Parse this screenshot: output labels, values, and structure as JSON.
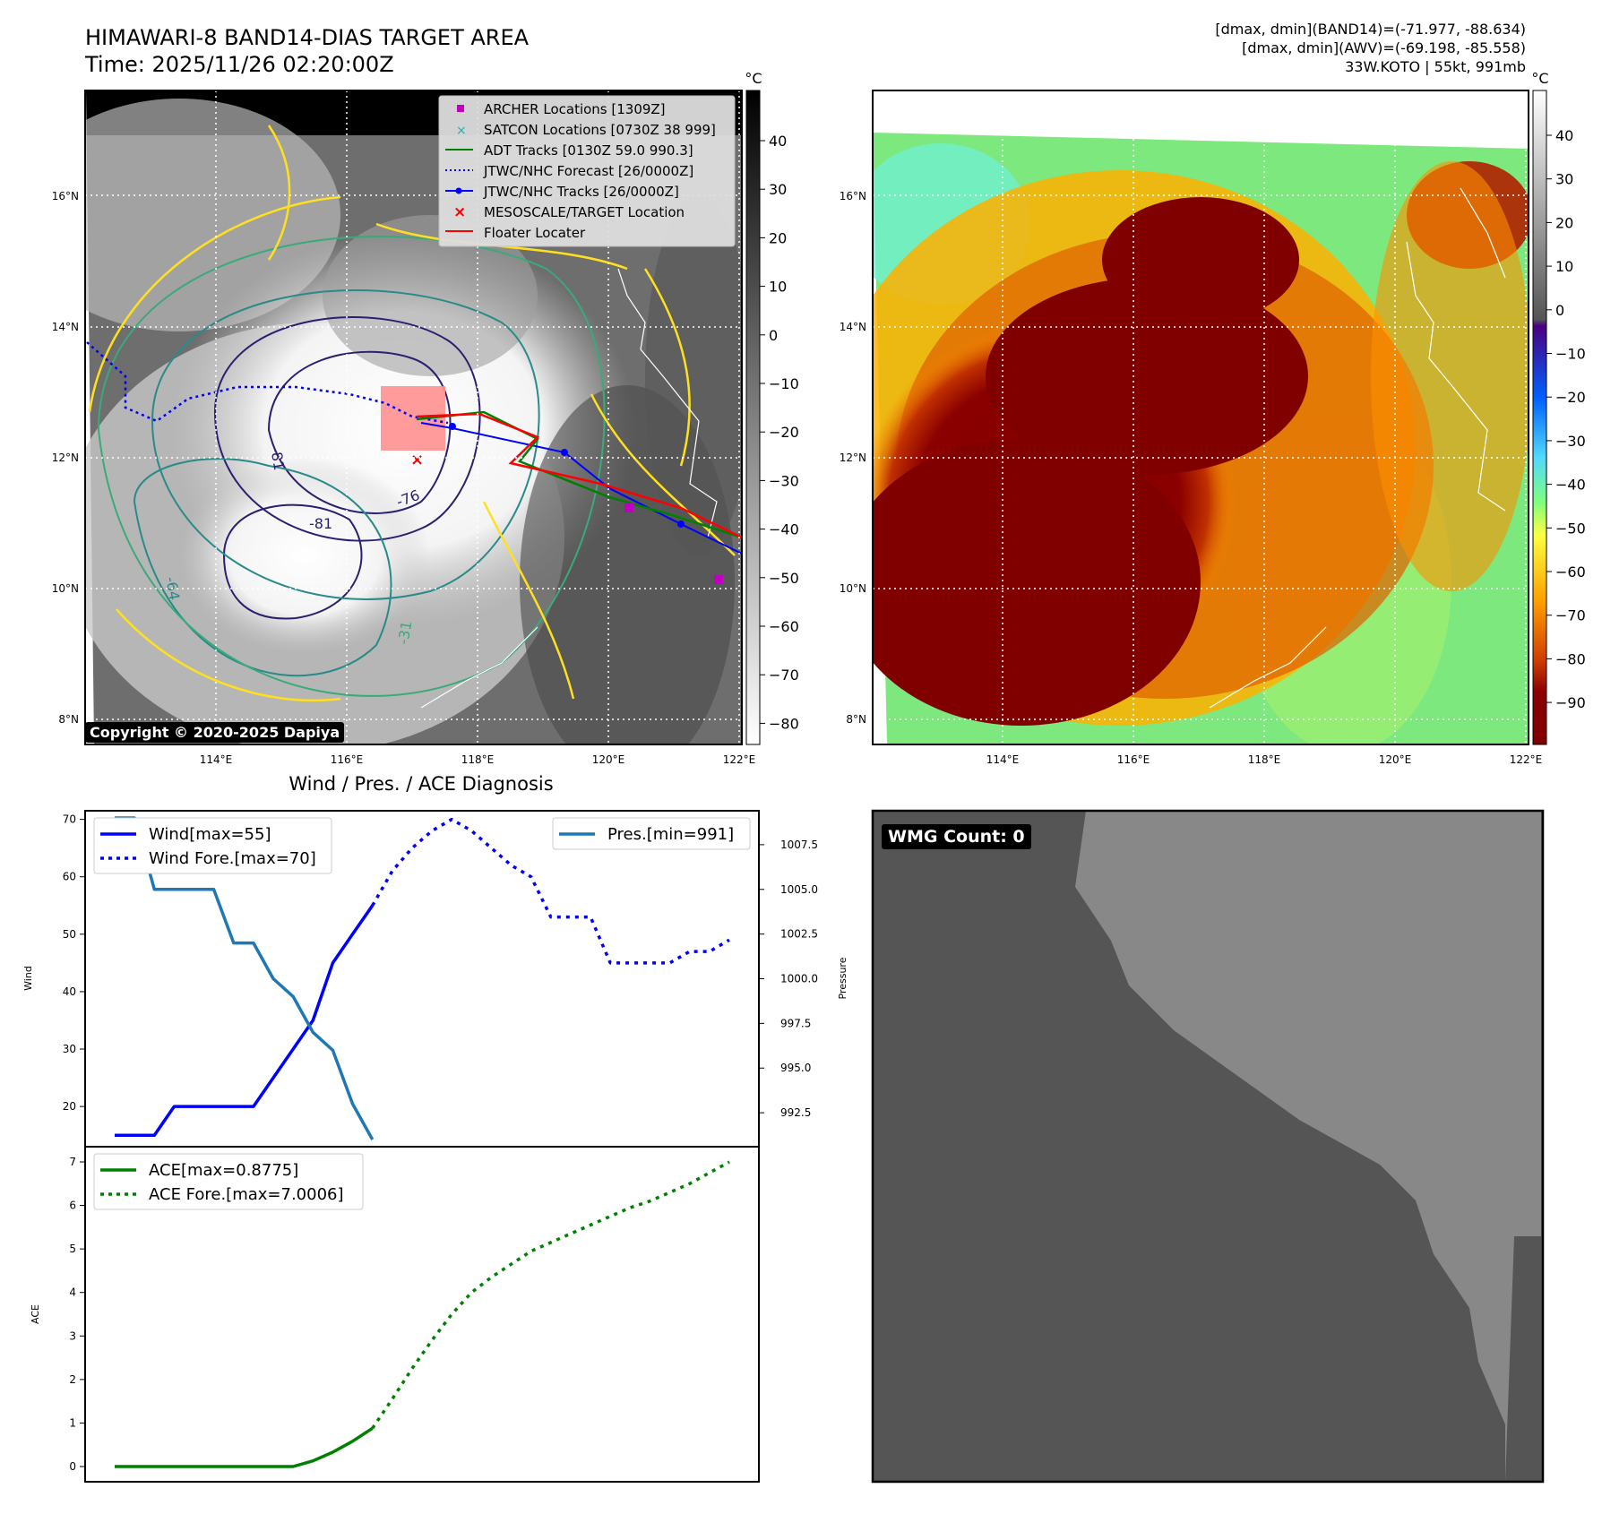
{
  "header": {
    "title": "HIMAWARI-8 BAND14-DIAS TARGET AREA",
    "time": "Time: 2025/11/26 02:20:00Z",
    "info1": "[dmax, dmin](BAND14)=(-71.977, -88.634)",
    "info2": "[dmax, dmin](AWV)=(-69.198, -85.558)",
    "info3": "33W.KOTO | 55kt, 991mb"
  },
  "map": {
    "lat_labels": [
      "16°N",
      "14°N",
      "12°N",
      "10°N",
      "8°N"
    ],
    "lon_labels": [
      "114°E",
      "116°E",
      "118°E",
      "120°E",
      "122°E"
    ],
    "lat_values": [
      16,
      14,
      12,
      10,
      8
    ],
    "lon_values": [
      114,
      116,
      118,
      120,
      122
    ],
    "contour_labels": [
      "-81",
      "-76",
      "-81",
      "-64",
      "-31"
    ],
    "copyright": "Copyright © 2020-2025 Dapiya",
    "cbar_unit": "°C",
    "cbar1_ticks": [
      "40",
      "30",
      "20",
      "10",
      "0",
      "−10",
      "−20",
      "−30",
      "−40",
      "−50",
      "−60",
      "−70",
      "−80"
    ],
    "cbar2_ticks": [
      "40",
      "30",
      "20",
      "10",
      "0",
      "−10",
      "−20",
      "−30",
      "−40",
      "−50",
      "−60",
      "−70",
      "−80",
      "−90"
    ],
    "legend": [
      {
        "label": "ARCHER Locations [1309Z]",
        "color": "#c000c0",
        "marker": "square"
      },
      {
        "label": "SATCON Locations [0730Z 38 999]",
        "color": "#20b0b0",
        "marker": "x"
      },
      {
        "label": "ADT Tracks [0130Z 59.0 990.3]",
        "color": "#008000",
        "marker": "line"
      },
      {
        "label": "JTWC/NHC Forecast [26/0000Z]",
        "color": "#0000ff",
        "marker": "dotted"
      },
      {
        "label": "JTWC/NHC Tracks [26/0000Z]",
        "color": "#0000ff",
        "marker": "dotline"
      },
      {
        "label": "MESOSCALE/TARGET Location",
        "color": "#ff0000",
        "marker": "x"
      },
      {
        "label": "Floater Locater",
        "color": "#ff0000",
        "marker": "line"
      }
    ]
  },
  "diag": {
    "title": "Wind / Pres. / ACE Diagnosis",
    "wmg": "WMG Count: 0"
  },
  "chart_data": [
    {
      "type": "line",
      "title": "Wind / Pres. / ACE Diagnosis",
      "ylabel": "Wind",
      "ylabel2": "Pressure",
      "ylim": [
        13,
        71.5
      ],
      "y2lim": [
        990.6,
        1009.4
      ],
      "yticks": [
        "70",
        "60",
        "50",
        "40",
        "30",
        "20"
      ],
      "y2ticks": [
        "1007.5",
        "1005.0",
        "1002.5",
        "1000.0",
        "997.5",
        "995.0",
        "992.5"
      ],
      "series": [
        {
          "name": "Wind[max=55]",
          "color": "#0000ff",
          "style": "solid",
          "x": [
            0,
            1,
            2,
            3,
            4,
            5,
            6,
            7,
            8,
            9,
            10,
            11,
            12,
            13
          ],
          "y": [
            15,
            15,
            15,
            20,
            20,
            20,
            20,
            20,
            25,
            30,
            35,
            45,
            50,
            55
          ]
        },
        {
          "name": "Wind Fore.[max=70]",
          "color": "#0000ff",
          "style": "dotted",
          "x": [
            13,
            14,
            15,
            16,
            17,
            18,
            19,
            20,
            21,
            22,
            23,
            24,
            25,
            26,
            27,
            28,
            29,
            30,
            31
          ],
          "y": [
            55,
            61,
            65,
            68,
            70,
            68,
            65,
            62,
            60,
            53,
            53,
            53,
            45,
            45,
            45,
            45,
            47,
            47,
            49
          ]
        },
        {
          "name": "Pres.[min=991]",
          "color": "#1f77b4",
          "style": "solid",
          "axis": "right",
          "x": [
            0,
            1,
            2,
            3,
            4,
            5,
            6,
            7,
            8,
            9,
            10,
            11,
            12,
            13
          ],
          "y": [
            1009.0,
            1009.0,
            1005.0,
            1005.0,
            1005.0,
            1005.0,
            1002.0,
            1002.0,
            1000.0,
            999.0,
            997.0,
            996.0,
            993.0,
            991.0
          ]
        }
      ]
    },
    {
      "type": "line",
      "ylabel": "ACE",
      "ylim": [
        -0.35,
        7.35
      ],
      "yticks": [
        "7",
        "6",
        "5",
        "4",
        "3",
        "2",
        "1",
        "0"
      ],
      "series": [
        {
          "name": "ACE[max=0.8775]",
          "color": "#008000",
          "style": "solid",
          "x": [
            0,
            1,
            2,
            3,
            4,
            5,
            6,
            7,
            8,
            9,
            10,
            11,
            12,
            13
          ],
          "y": [
            0,
            0,
            0,
            0,
            0,
            0,
            0,
            0,
            0,
            0,
            0.13,
            0.33,
            0.58,
            0.88
          ]
        },
        {
          "name": "ACE Fore.[max=7.0006]",
          "color": "#008000",
          "style": "dotted",
          "x": [
            13,
            14,
            15,
            16,
            17,
            18,
            19,
            20,
            21,
            22,
            23,
            24,
            25,
            26,
            27,
            28,
            29,
            30,
            31
          ],
          "y": [
            0.88,
            1.55,
            2.25,
            2.9,
            3.5,
            4.0,
            4.35,
            4.65,
            4.95,
            5.15,
            5.35,
            5.55,
            5.75,
            5.95,
            6.1,
            6.3,
            6.5,
            6.75,
            7.0
          ]
        }
      ]
    }
  ]
}
